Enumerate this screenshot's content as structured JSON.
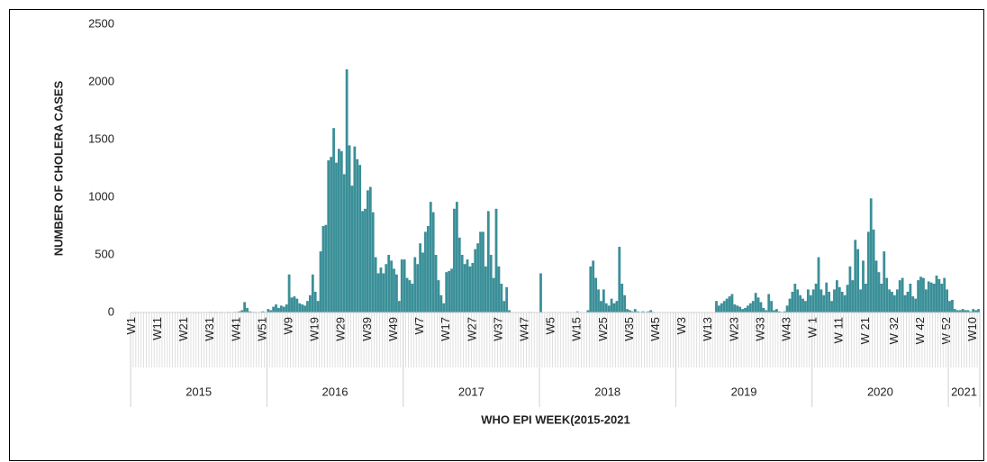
{
  "chart_data": {
    "type": "bar",
    "color": "#3a8f98",
    "y_label": "NUMBER OF CHOLERA CASES",
    "x_label": "WHO EPI WEEK(2015-2021",
    "ylim": [
      0,
      2500
    ],
    "yticks": [
      0,
      500,
      1000,
      1500,
      2000,
      2500
    ],
    "groups": [
      {
        "label": "2015",
        "categories": [
          "W1",
          null,
          null,
          null,
          null,
          null,
          null,
          null,
          null,
          null,
          "W11",
          null,
          null,
          null,
          null,
          null,
          null,
          null,
          null,
          null,
          "W21",
          null,
          null,
          null,
          null,
          null,
          null,
          null,
          null,
          null,
          "W31",
          null,
          null,
          null,
          null,
          null,
          null,
          null,
          null,
          null,
          "W41",
          null,
          null,
          null,
          null,
          null,
          null,
          null,
          null,
          null,
          "W51",
          null
        ],
        "values": [
          0,
          0,
          0,
          0,
          0,
          0,
          0,
          0,
          0,
          0,
          0,
          0,
          0,
          0,
          0,
          0,
          0,
          0,
          0,
          0,
          0,
          0,
          0,
          0,
          0,
          0,
          0,
          0,
          0,
          0,
          5,
          0,
          5,
          0,
          5,
          0,
          0,
          5,
          0,
          5,
          5,
          10,
          20,
          90,
          40,
          10,
          5,
          5,
          0,
          5,
          10,
          5
        ]
      },
      {
        "label": "2016",
        "categories": [
          null,
          null,
          null,
          null,
          null,
          null,
          null,
          null,
          "W9",
          null,
          null,
          null,
          null,
          null,
          null,
          null,
          null,
          null,
          "W19",
          null,
          null,
          null,
          null,
          null,
          null,
          null,
          null,
          null,
          "W29",
          null,
          null,
          null,
          null,
          null,
          null,
          null,
          null,
          null,
          "W39",
          null,
          null,
          null,
          null,
          null,
          null,
          null,
          null,
          null,
          "W49",
          null,
          null,
          null
        ],
        "values": [
          30,
          20,
          50,
          70,
          40,
          60,
          50,
          70,
          330,
          130,
          140,
          120,
          80,
          70,
          60,
          100,
          150,
          330,
          180,
          100,
          530,
          750,
          760,
          1320,
          1350,
          1600,
          1300,
          1420,
          1400,
          1200,
          2110,
          1450,
          1100,
          1440,
          1330,
          1280,
          880,
          900,
          1060,
          1090,
          870,
          480,
          340,
          390,
          340,
          420,
          500,
          450,
          380,
          330,
          100,
          460
        ]
      },
      {
        "label": "2017",
        "categories": [
          null,
          null,
          null,
          null,
          null,
          null,
          "W7",
          null,
          null,
          null,
          null,
          null,
          null,
          null,
          null,
          null,
          "W17",
          null,
          null,
          null,
          null,
          null,
          null,
          null,
          null,
          null,
          "W27",
          null,
          null,
          null,
          null,
          null,
          null,
          null,
          null,
          null,
          "W37",
          null,
          null,
          null,
          null,
          null,
          null,
          null,
          null,
          null,
          "W47",
          null,
          null,
          null,
          null,
          null
        ],
        "values": [
          460,
          300,
          280,
          250,
          480,
          420,
          600,
          520,
          700,
          750,
          960,
          870,
          500,
          280,
          150,
          80,
          350,
          360,
          380,
          900,
          960,
          650,
          500,
          420,
          460,
          400,
          430,
          550,
          600,
          700,
          700,
          400,
          880,
          500,
          300,
          900,
          400,
          250,
          100,
          220,
          20,
          0,
          0,
          0,
          0,
          0,
          0,
          0,
          5,
          0,
          0,
          0
        ]
      },
      {
        "label": "2018",
        "categories": [
          null,
          null,
          null,
          null,
          "W5",
          null,
          null,
          null,
          null,
          null,
          null,
          null,
          null,
          null,
          "W15",
          null,
          null,
          null,
          null,
          null,
          null,
          null,
          null,
          null,
          "W25",
          null,
          null,
          null,
          null,
          null,
          null,
          null,
          null,
          null,
          "W35",
          null,
          null,
          null,
          null,
          null,
          null,
          null,
          null,
          null,
          "W45",
          null,
          null,
          null,
          null,
          null,
          null,
          null
        ],
        "values": [
          340,
          0,
          0,
          0,
          0,
          0,
          0,
          0,
          0,
          0,
          0,
          0,
          0,
          0,
          10,
          0,
          0,
          0,
          20,
          400,
          450,
          300,
          200,
          100,
          200,
          80,
          60,
          120,
          80,
          100,
          570,
          250,
          150,
          30,
          20,
          10,
          30,
          10,
          5,
          10,
          5,
          10,
          20,
          5,
          0,
          0,
          0,
          0,
          0,
          0,
          0,
          0
        ]
      },
      {
        "label": "2019",
        "categories": [
          null,
          null,
          "W3",
          null,
          null,
          null,
          null,
          null,
          null,
          null,
          null,
          null,
          "W13",
          null,
          null,
          null,
          null,
          null,
          null,
          null,
          null,
          null,
          "W23",
          null,
          null,
          null,
          null,
          null,
          null,
          null,
          null,
          null,
          "W33",
          null,
          null,
          null,
          null,
          null,
          null,
          null,
          null,
          null,
          "W43",
          null,
          null,
          null,
          null,
          null,
          null,
          null,
          null,
          null
        ],
        "values": [
          0,
          0,
          0,
          0,
          0,
          0,
          0,
          0,
          0,
          0,
          0,
          0,
          0,
          0,
          0,
          100,
          60,
          80,
          100,
          120,
          140,
          160,
          70,
          60,
          50,
          30,
          40,
          60,
          80,
          100,
          170,
          130,
          90,
          40,
          20,
          160,
          100,
          20,
          30,
          10,
          5,
          10,
          60,
          120,
          180,
          250,
          200,
          150,
          120,
          100,
          200,
          150
        ]
      },
      {
        "label": "2020",
        "categories": [
          "W 1",
          null,
          null,
          null,
          null,
          null,
          null,
          null,
          null,
          null,
          "W 11",
          null,
          null,
          null,
          null,
          null,
          null,
          null,
          null,
          null,
          "W 21",
          null,
          null,
          null,
          null,
          null,
          null,
          null,
          null,
          null,
          null,
          "W 32",
          null,
          null,
          null,
          null,
          null,
          null,
          null,
          null,
          null,
          "W 42",
          null,
          null,
          null,
          null,
          null,
          null,
          null,
          null,
          null,
          "W 52"
        ],
        "values": [
          200,
          250,
          480,
          200,
          150,
          260,
          180,
          100,
          200,
          280,
          220,
          180,
          150,
          240,
          400,
          280,
          630,
          550,
          200,
          450,
          250,
          700,
          990,
          720,
          450,
          350,
          250,
          530,
          300,
          200,
          180,
          150,
          200,
          280,
          300,
          150,
          180,
          250,
          140,
          120,
          280,
          310,
          300,
          200,
          270,
          260,
          250,
          320,
          290,
          250,
          300,
          200
        ]
      },
      {
        "label": "2021",
        "categories": [
          null,
          null,
          null,
          null,
          null,
          null,
          null,
          null,
          null,
          "W10",
          null,
          null
        ],
        "values": [
          100,
          110,
          30,
          20,
          20,
          30,
          20,
          20,
          10,
          30,
          20,
          30
        ]
      }
    ]
  }
}
